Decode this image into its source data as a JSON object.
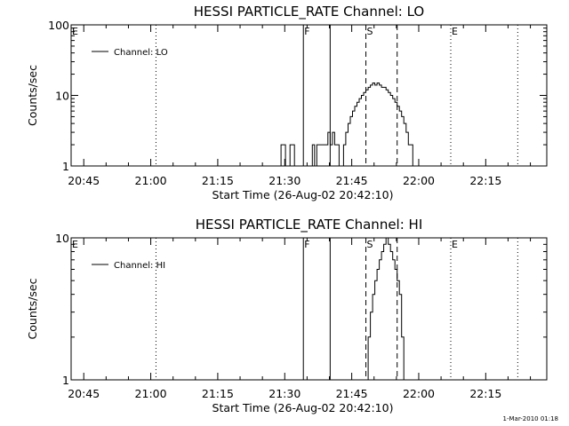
{
  "chart_data": [
    {
      "type": "line",
      "title": "HESSI PARTICLE_RATE Channel: LO",
      "xlabel": "Start Time (26-Aug-02 20:42:10)",
      "ylabel": "Counts/sec",
      "y_scale": "log",
      "ylim": [
        1,
        100
      ],
      "y_ticks": [
        "1",
        "10",
        "100"
      ],
      "x_tick_labels": [
        "20:45",
        "21:00",
        "21:15",
        "21:30",
        "21:45",
        "22:00",
        "22:15"
      ],
      "legend": {
        "label": "Channel: LO",
        "position": "top-left"
      },
      "series": [
        {
          "name": "Channel: LO",
          "x_minutes": [
            46.5,
            47.0,
            47.5,
            48.0,
            48.5,
            49.0,
            49.5,
            50.0,
            50.5,
            51.0,
            51.5,
            52.0,
            52.5,
            53.0,
            53.5,
            54.0,
            54.5,
            55.0,
            55.5,
            56.0,
            56.5,
            57.0,
            57.5,
            58.0,
            58.5,
            59.0,
            59.5,
            60.0,
            60.5,
            61.0,
            61.5,
            62.0,
            62.5,
            63.0,
            63.5,
            64.0,
            64.5,
            65.0,
            65.5,
            66.0,
            66.5,
            67.0,
            67.5,
            68.0,
            68.5,
            69.0,
            69.5,
            70.0,
            70.5,
            71.0,
            71.5,
            72.0,
            72.5,
            73.0,
            73.5,
            74.0,
            74.5,
            75.0,
            75.5,
            76.0,
            76.5,
            77.0,
            77.5,
            78.0,
            78.5
          ],
          "counts_per_sec": [
            1,
            2,
            2,
            1,
            1,
            2,
            2,
            1,
            1,
            1,
            1,
            1,
            1,
            1,
            1,
            2,
            1,
            2,
            2,
            2,
            2,
            2,
            3,
            2,
            3,
            2,
            2,
            1,
            1,
            2,
            3,
            4,
            5,
            6,
            7,
            8,
            9,
            10,
            11,
            12,
            13,
            14,
            15,
            14,
            15,
            14,
            13,
            13,
            12,
            11,
            10,
            9,
            8,
            7,
            6,
            5,
            4,
            3,
            2,
            2,
            1,
            1,
            1,
            1,
            1
          ]
        }
      ],
      "markers": [
        {
          "label": "E",
          "x_minutes": 0,
          "style": "dotted"
        },
        {
          "label": "",
          "x_minutes": 19,
          "style": "dotted"
        },
        {
          "label": "F",
          "x_minutes": 52,
          "style": "solid"
        },
        {
          "label": "",
          "x_minutes": 58,
          "style": "solid"
        },
        {
          "label": "S",
          "x_minutes": 66,
          "style": "dashed"
        },
        {
          "label": "",
          "x_minutes": 73,
          "style": "dashed"
        },
        {
          "label": "E",
          "x_minutes": 85,
          "style": "dotted"
        },
        {
          "label": "",
          "x_minutes": 100,
          "style": "dotted"
        }
      ]
    },
    {
      "type": "line",
      "title": "HESSI PARTICLE_RATE Channel: HI",
      "xlabel": "Start Time (26-Aug-02 20:42:10)",
      "ylabel": "Counts/sec",
      "y_scale": "log",
      "ylim": [
        1,
        10
      ],
      "y_ticks": [
        "1",
        "10"
      ],
      "x_tick_labels": [
        "20:45",
        "21:00",
        "21:15",
        "21:30",
        "21:45",
        "22:00",
        "22:15"
      ],
      "legend": {
        "label": "Channel: HI",
        "position": "top-left"
      },
      "series": [
        {
          "name": "Channel: HI",
          "x_minutes": [
            66.0,
            66.5,
            67.0,
            67.5,
            68.0,
            68.5,
            69.0,
            69.5,
            70.0,
            70.5,
            71.0,
            71.5,
            72.0,
            72.5,
            73.0,
            73.5,
            74.0,
            74.5
          ],
          "counts_per_sec": [
            1,
            2,
            3,
            4,
            5,
            6,
            7,
            8,
            9,
            10,
            9,
            8,
            7,
            6,
            5,
            4,
            2,
            1
          ]
        }
      ],
      "markers": [
        {
          "label": "E",
          "x_minutes": 0,
          "style": "dotted"
        },
        {
          "label": "",
          "x_minutes": 19,
          "style": "dotted"
        },
        {
          "label": "F",
          "x_minutes": 52,
          "style": "solid"
        },
        {
          "label": "",
          "x_minutes": 58,
          "style": "solid"
        },
        {
          "label": "S",
          "x_minutes": 66,
          "style": "dashed"
        },
        {
          "label": "",
          "x_minutes": 73,
          "style": "dashed"
        },
        {
          "label": "E",
          "x_minutes": 85,
          "style": "dotted"
        },
        {
          "label": "",
          "x_minutes": 100,
          "style": "dotted"
        }
      ]
    }
  ],
  "footer": {
    "timestamp": "1-Mar-2010 01:18"
  }
}
